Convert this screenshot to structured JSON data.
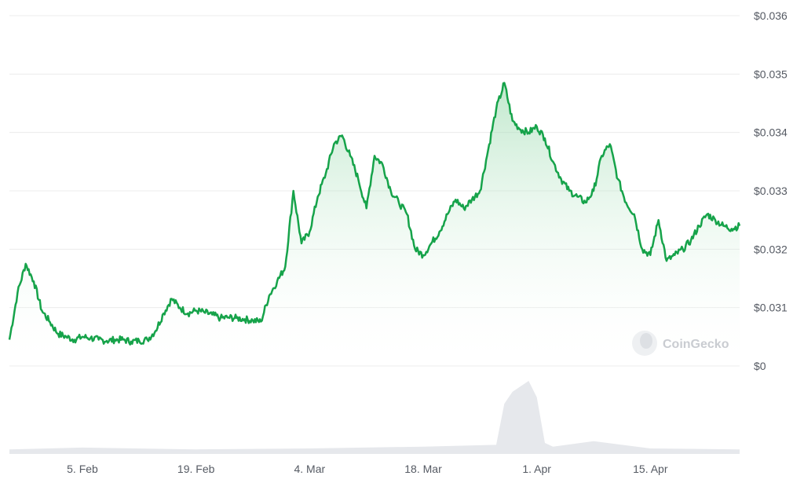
{
  "chart_data": {
    "type": "area",
    "title": "",
    "xlabel": "",
    "ylabel": "",
    "watermark": "CoinGecko",
    "grid": true,
    "legend": "none",
    "y_axis_side": "right",
    "y_tick_labels": [
      "$0.036",
      "$0.035",
      "$0.034",
      "$0.033",
      "$0.032",
      "$0.031",
      "$0"
    ],
    "y_ticks": [
      0.036,
      0.035,
      0.034,
      0.033,
      0.032,
      0.031,
      0.03
    ],
    "ylim": [
      0.03,
      0.036
    ],
    "x_tick_labels": [
      "5. Feb",
      "19. Feb",
      "4. Mar",
      "18. Mar",
      "1. Apr",
      "15. Apr"
    ],
    "x_tick_dates": [
      "2024-02-05",
      "2024-02-19",
      "2024-03-04",
      "2024-03-18",
      "2024-04-01",
      "2024-04-15"
    ],
    "xlim": [
      "2024-01-27",
      "2024-04-26"
    ],
    "colors": {
      "line": "#16a34a",
      "area_top": "#8ed6a4",
      "area_bottom": "#ffffff",
      "volume": "#e6e8ec"
    },
    "series": [
      {
        "values_x": [
          "2024-01-27",
          "2024-01-28",
          "2024-01-29",
          "2024-01-30",
          "2024-01-31",
          "2024-02-01",
          "2024-02-02",
          "2024-02-03",
          "2024-02-04",
          "2024-02-05",
          "2024-02-06",
          "2024-02-07",
          "2024-02-08",
          "2024-02-09",
          "2024-02-10",
          "2024-02-11",
          "2024-02-12",
          "2024-02-13",
          "2024-02-14",
          "2024-02-15",
          "2024-02-16",
          "2024-02-17",
          "2024-02-18",
          "2024-02-19",
          "2024-02-20",
          "2024-02-21",
          "2024-02-22",
          "2024-02-23",
          "2024-02-24",
          "2024-02-25",
          "2024-02-26",
          "2024-02-27",
          "2024-02-28",
          "2024-02-29",
          "2024-03-01",
          "2024-03-02",
          "2024-03-03",
          "2024-03-04",
          "2024-03-05",
          "2024-03-06",
          "2024-03-07",
          "2024-03-08",
          "2024-03-09",
          "2024-03-10",
          "2024-03-11",
          "2024-03-12",
          "2024-03-13",
          "2024-03-14",
          "2024-03-15",
          "2024-03-16",
          "2024-03-17",
          "2024-03-18",
          "2024-03-19",
          "2024-03-20",
          "2024-03-21",
          "2024-03-22",
          "2024-03-23",
          "2024-03-24",
          "2024-03-25",
          "2024-03-26",
          "2024-03-27",
          "2024-03-28",
          "2024-03-29",
          "2024-03-30",
          "2024-03-31",
          "2024-04-01",
          "2024-04-02",
          "2024-04-03",
          "2024-04-04",
          "2024-04-05",
          "2024-04-06",
          "2024-04-07",
          "2024-04-08",
          "2024-04-09",
          "2024-04-10",
          "2024-04-11",
          "2024-04-12",
          "2024-04-13",
          "2024-04-14",
          "2024-04-15",
          "2024-04-16",
          "2024-04-17",
          "2024-04-18",
          "2024-04-19",
          "2024-04-20",
          "2024-04-21",
          "2024-04-22",
          "2024-04-23",
          "2024-04-24",
          "2024-04-25",
          "2024-04-26"
        ],
        "values": [
          0.03045,
          0.03125,
          0.03175,
          0.03145,
          0.03095,
          0.03075,
          0.03055,
          0.0305,
          0.03045,
          0.0305,
          0.03048,
          0.03045,
          0.03043,
          0.03045,
          0.03045,
          0.03042,
          0.03043,
          0.03045,
          0.0306,
          0.0309,
          0.03115,
          0.031,
          0.0309,
          0.03095,
          0.03092,
          0.03088,
          0.03082,
          0.03083,
          0.03082,
          0.0308,
          0.03078,
          0.03076,
          0.0312,
          0.03145,
          0.0317,
          0.033,
          0.0321,
          0.0323,
          0.0329,
          0.0333,
          0.0338,
          0.03395,
          0.0336,
          0.0332,
          0.0327,
          0.0336,
          0.03345,
          0.033,
          0.0328,
          0.0326,
          0.032,
          0.0319,
          0.0321,
          0.0323,
          0.0326,
          0.03285,
          0.0327,
          0.03285,
          0.033,
          0.0337,
          0.0344,
          0.03485,
          0.0342,
          0.03405,
          0.034,
          0.0341,
          0.0339,
          0.0335,
          0.0332,
          0.033,
          0.0329,
          0.0328,
          0.033,
          0.0336,
          0.0338,
          0.0332,
          0.0328,
          0.0326,
          0.032,
          0.0319,
          0.0325,
          0.0318,
          0.0319,
          0.032,
          0.03215,
          0.0324,
          0.0326,
          0.0325,
          0.0324,
          0.03235,
          0.0324
        ]
      }
    ],
    "volume": {
      "values_x": [
        "2024-01-27",
        "2024-02-05",
        "2024-02-19",
        "2024-03-04",
        "2024-03-18",
        "2024-03-27",
        "2024-03-28",
        "2024-03-29",
        "2024-03-31",
        "2024-04-01",
        "2024-04-02",
        "2024-04-03",
        "2024-04-08",
        "2024-04-15",
        "2024-04-26"
      ],
      "values": [
        5,
        7,
        5,
        6,
        8,
        10,
        55,
        68,
        80,
        62,
        12,
        8,
        14,
        6,
        5
      ]
    }
  }
}
